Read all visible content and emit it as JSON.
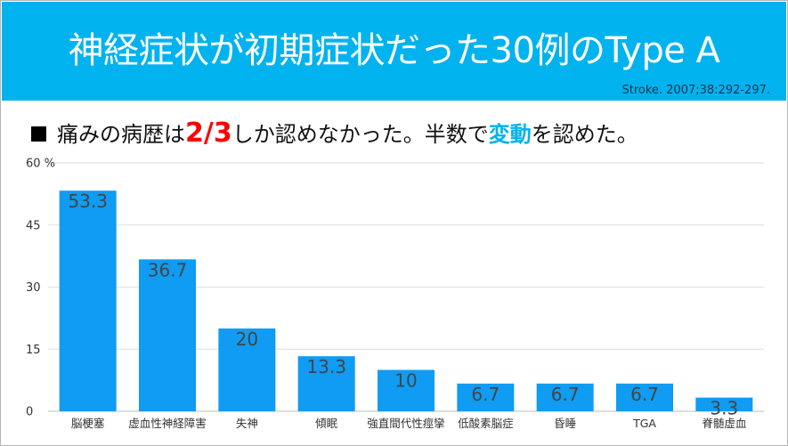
{
  "header": {
    "title": "神経症状が初期症状だった30例のType A",
    "citation": "Stroke. 2007;38:292-297.",
    "background_color": "#00b3ef"
  },
  "subtitle": {
    "part1": "痛みの病歴は",
    "highlight_fraction": "2/3",
    "part2": "しか認めなかった。半数で",
    "highlight_word": "変動",
    "part3": "を認めた。",
    "highlight_fraction_color": "#ff0000",
    "highlight_word_color": "#00b3ef"
  },
  "chart_data": {
    "type": "bar",
    "categories": [
      "脳梗塞",
      "虚血性神経障害",
      "失神",
      "傾眠",
      "強直間代性痙攣",
      "低酸素脳症",
      "昏睡",
      "TGA",
      "脊髄虚血"
    ],
    "values": [
      53.3,
      36.7,
      20,
      13.3,
      10,
      6.7,
      6.7,
      6.7,
      3.3
    ],
    "data_labels": [
      "53.3",
      "36.7",
      "20",
      "13.3",
      "10",
      "6.7",
      "6.7",
      "6.7",
      "3.3"
    ],
    "y_ticks": [
      0,
      15,
      30,
      45,
      60
    ],
    "y_tick_labels": [
      "0",
      "15",
      "30",
      "45",
      "60 %"
    ],
    "ylim": [
      0,
      60
    ],
    "grid": true,
    "bar_color": "#0f9cf2"
  }
}
